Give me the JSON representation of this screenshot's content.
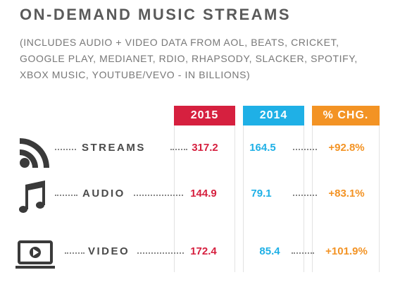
{
  "header": {
    "title": "ON-DEMAND MUSIC STREAMS",
    "subtitle": [
      "(INCLUDES AUDIO + VIDEO DATA FROM AOL, BEATS, CRICKET,",
      "GOOGLE PLAY, MEDIANET, RDIO, RHAPSODY, SLACKER, SPOTIFY,",
      "XBOX MUSIC, YOUTUBE/VEVO - IN BILLIONS)"
    ]
  },
  "table": {
    "columns": [
      "2015",
      "2014",
      "% CHG."
    ],
    "rows": [
      {
        "label": "STREAMS",
        "cells": [
          "317.2",
          "164.5",
          "+92.8%"
        ]
      },
      {
        "label": "AUDIO",
        "cells": [
          "144.9",
          "79.1",
          "+83.1%"
        ]
      },
      {
        "label": "VIDEO",
        "cells": [
          "172.4",
          "85.4",
          "+101.9%"
        ]
      }
    ]
  }
}
